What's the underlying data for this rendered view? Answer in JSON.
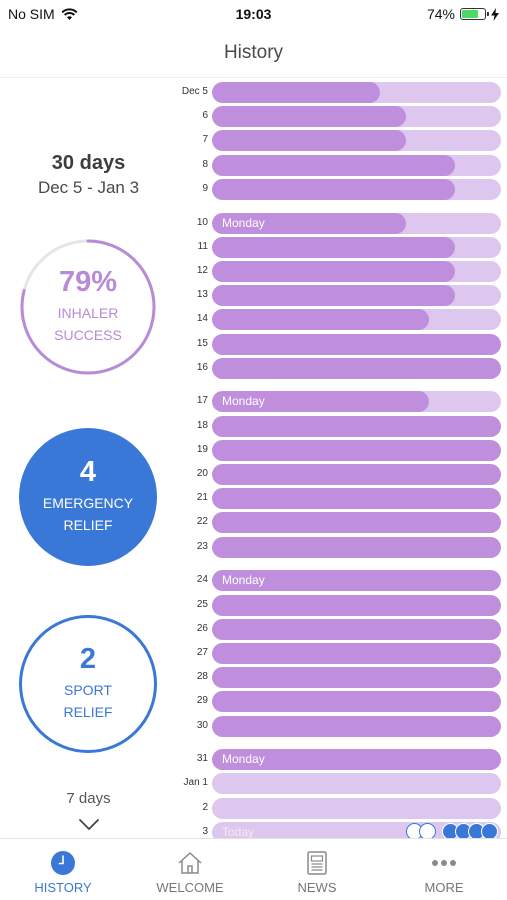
{
  "status_bar": {
    "carrier": "No SIM",
    "time": "19:03",
    "battery": "74%",
    "battery_level": 0.74
  },
  "header": {
    "title": "History"
  },
  "summary": {
    "period": "30 days",
    "range": "Dec 5 - Jan 3",
    "inhaler": {
      "value": "79%",
      "label_line1": "INHALER",
      "label_line2": "SUCCESS",
      "fraction": 0.79
    },
    "emergency": {
      "value": "4",
      "label_line1": "EMERGENCY",
      "label_line2": "RELIEF"
    },
    "sport": {
      "value": "2",
      "label_line1": "SPORT",
      "label_line2": "RELIEF"
    },
    "range_selector": "7 days"
  },
  "history": [
    {
      "label": "Dec 5",
      "fill": 0.58
    },
    {
      "label": "6",
      "fill": 0.67
    },
    {
      "label": "7",
      "fill": 0.67
    },
    {
      "label": "8",
      "fill": 0.84
    },
    {
      "label": "9",
      "fill": 0.84
    },
    {
      "label": "10",
      "fill": 0.67,
      "note": "Monday"
    },
    {
      "label": "11",
      "fill": 0.84
    },
    {
      "label": "12",
      "fill": 0.84
    },
    {
      "label": "13",
      "fill": 0.84
    },
    {
      "label": "14",
      "fill": 0.75
    },
    {
      "label": "15",
      "fill": 1.0
    },
    {
      "label": "16",
      "fill": 1.0
    },
    {
      "label": "17",
      "fill": 0.75,
      "note": "Monday"
    },
    {
      "label": "18",
      "fill": 1.0
    },
    {
      "label": "19",
      "fill": 1.0
    },
    {
      "label": "20",
      "fill": 1.0
    },
    {
      "label": "21",
      "fill": 1.0
    },
    {
      "label": "22",
      "fill": 1.0
    },
    {
      "label": "23",
      "fill": 1.0
    },
    {
      "label": "24",
      "fill": 1.0,
      "note": "Monday"
    },
    {
      "label": "25",
      "fill": 1.0
    },
    {
      "label": "26",
      "fill": 1.0
    },
    {
      "label": "27",
      "fill": 1.0
    },
    {
      "label": "28",
      "fill": 1.0
    },
    {
      "label": "29",
      "fill": 1.0
    },
    {
      "label": "30",
      "fill": 1.0
    },
    {
      "label": "31",
      "fill": 1.0,
      "note": "Monday"
    },
    {
      "label": "Jan 1",
      "fill": 0.0
    },
    {
      "label": "2",
      "fill": 0.0
    },
    {
      "label": "3",
      "fill": 0.0,
      "note": "Today",
      "sport_events": 2,
      "emergency_events": 4
    }
  ],
  "tabs": [
    {
      "label": "HISTORY",
      "icon": "clock-icon",
      "active": true
    },
    {
      "label": "WELCOME",
      "icon": "home-icon",
      "active": false
    },
    {
      "label": "NEWS",
      "icon": "news-icon",
      "active": false
    },
    {
      "label": "MORE",
      "icon": "more-icon",
      "active": false
    }
  ],
  "colors": {
    "accent_blue": "#3a78d8",
    "bar_fill": "#bf8edd",
    "bar_track": "#dec7ee",
    "inhaler_purple": "#b98bd6"
  }
}
